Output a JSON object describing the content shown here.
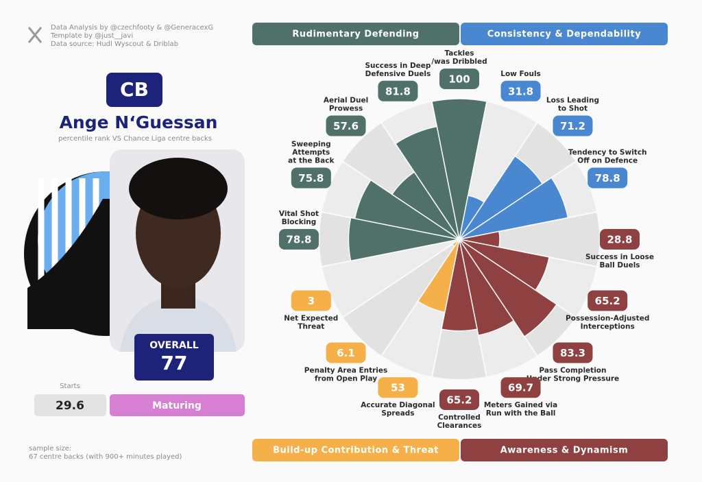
{
  "header": {
    "credits": [
      "Data Analysis by @czechfooty & @GeneracexG",
      "Template by @just__javi",
      "Data source: Hudl Wyscout & Driblab"
    ]
  },
  "player": {
    "position": "CB",
    "name": "Ange N‘Guessan",
    "subtitle": "percentile rank VS Chance Liga centre backs",
    "overall_label": "OVERALL",
    "overall": 77,
    "starts_label": "Starts",
    "starts": 29.6,
    "status": "Maturing"
  },
  "footer": {
    "sample_size": [
      "sample size:",
      "67 centre backs (with 900+ minutes played)"
    ]
  },
  "chart_data": {
    "type": "pizza",
    "categories": [
      "Tackles\n/was Dribbled",
      "Low Fouls",
      "Loss Leading\nto Shot",
      "Tendency to Switch\nOff on Defence",
      "Success in Loose\nBall Duels",
      "Possession-Adjusted\nInterceptions",
      "Pass Completion\nUnder Strong Pressure",
      "Meters Gained via\nRun with the Ball",
      "Controlled\nClearances",
      "Accurate Diagonal\nSpreads",
      "Penalty Area Entries\nfrom Open Play",
      "Net Expected\nThreat",
      "Vital Shot\nBlocking",
      "Sweeping\nAttempts\nat the Back",
      "Aerial Duel\nProwess",
      "Success in Deep\nDefensive Duels"
    ],
    "ylim": [
      0,
      100
    ],
    "series": [
      {
        "name": "Rudimentary Defending",
        "color": "#4f7169",
        "values": [
          100,
          null,
          null,
          null,
          null,
          null,
          null,
          null,
          null,
          null,
          null,
          null,
          78.8,
          75.8,
          57.6,
          81.8
        ]
      },
      {
        "name": "Consistency & Dependability",
        "color": "#4a87d1",
        "values": [
          null,
          31.8,
          71.2,
          78.8,
          null,
          null,
          null,
          null,
          null,
          null,
          null,
          null,
          null,
          null,
          null,
          null
        ]
      },
      {
        "name": "Awareness & Dynamism",
        "color": "#8f4141",
        "values": [
          null,
          null,
          null,
          null,
          28.8,
          65.2,
          83.3,
          69.7,
          65.2,
          null,
          null,
          null,
          null,
          null,
          null,
          null
        ]
      },
      {
        "name": "Build-up Contribution & Threat",
        "color": "#f6b04a",
        "values": [
          null,
          null,
          null,
          null,
          null,
          null,
          null,
          null,
          null,
          53,
          6.1,
          3,
          null,
          null,
          null,
          null
        ]
      }
    ]
  }
}
